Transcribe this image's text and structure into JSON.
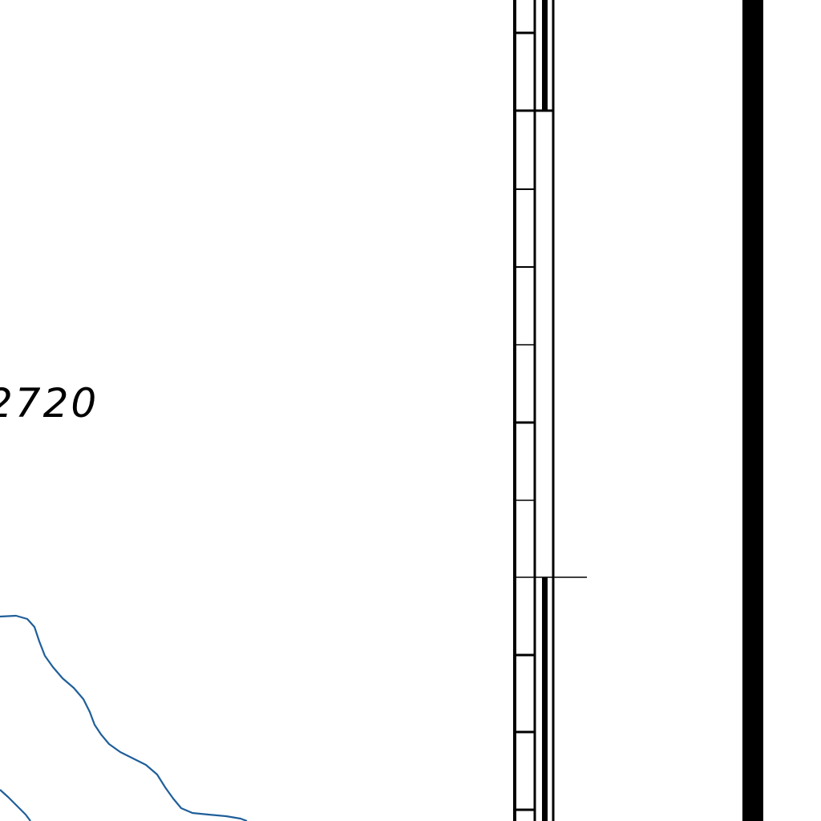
{
  "map": {
    "contour_label": "2720",
    "colors": {
      "background": "#ffffff",
      "neatline": "#000000",
      "stream": "#1f5f99"
    },
    "features": {
      "streams": [
        "stream-line-upper",
        "stream-line-lower"
      ],
      "border": [
        "map-border-frame",
        "map-border-scale-bar",
        "outer-neatline"
      ]
    }
  }
}
